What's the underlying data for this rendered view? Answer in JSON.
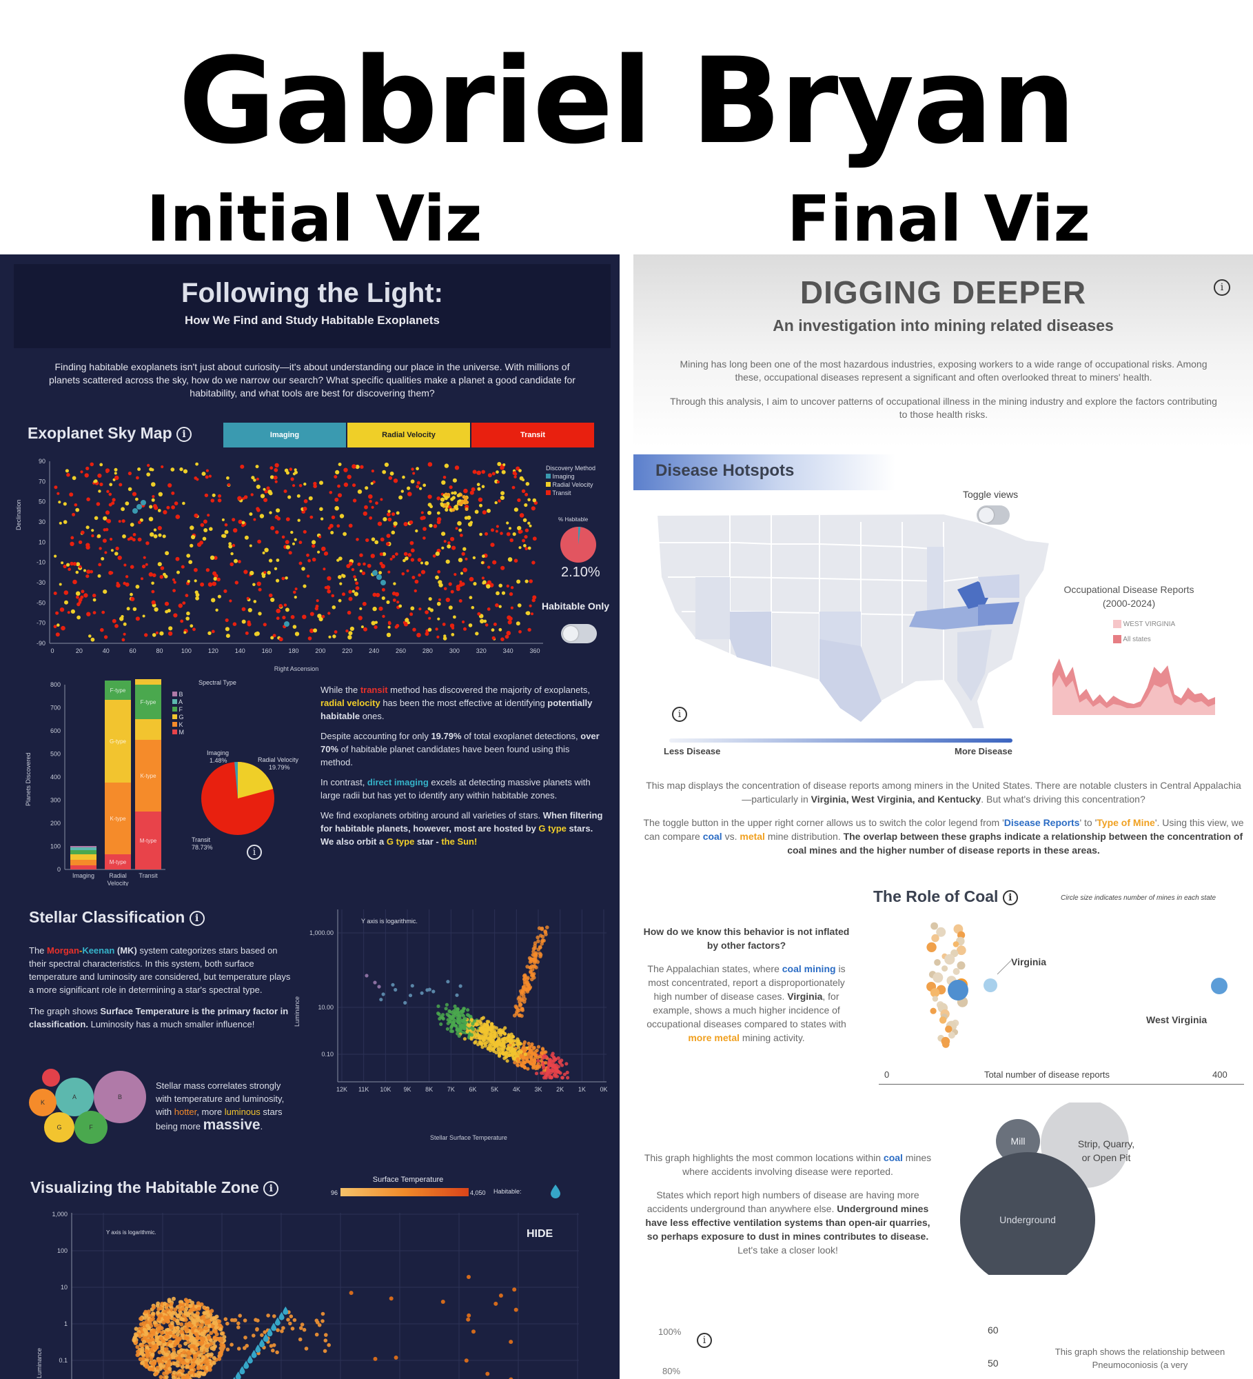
{
  "header": {
    "name": "Gabriel Bryan",
    "initial_label": "Initial Viz",
    "final_label": "Final Viz"
  },
  "left": {
    "title": "Following the Light:",
    "subtitle": "How We Find and Study Habitable Exoplanets",
    "intro": "Finding habitable exoplanets isn't just about curiosity—it's about understanding our place in the universe. With millions of planets scattered across the sky, how do we narrow our search? What specific qualities make a planet a good candidate for habitability, and what tools are best for discovering them?",
    "sky_map": {
      "title": "Exoplanet Sky Map",
      "buttons": [
        "Imaging",
        "Radial Velocity",
        "Transit"
      ],
      "ylabel": "Declination",
      "xlabel": "Right Ascension",
      "y_ticks": [
        "90",
        "70",
        "50",
        "30",
        "10",
        "-10",
        "-30",
        "-50",
        "-70",
        "-90"
      ],
      "x_ticks": [
        "0",
        "20",
        "40",
        "60",
        "80",
        "100",
        "120",
        "140",
        "160",
        "180",
        "200",
        "220",
        "240",
        "260",
        "280",
        "300",
        "320",
        "340",
        "360"
      ],
      "legend_title": "Discovery Method",
      "legend": [
        "Imaging",
        "Radial Velocity",
        "Transit"
      ],
      "pct_label": "% Habitable",
      "pct_value": "2.10%",
      "habitable_only": "Habitable Only"
    },
    "discovery": {
      "ylabel": "Planets Discovered",
      "y_ticks": [
        "800",
        "700",
        "600",
        "500",
        "400",
        "300",
        "200",
        "100",
        "0"
      ],
      "categories": [
        "Imaging",
        "Radial\nVelocity",
        "Transit"
      ],
      "spectral_title": "Spectral Type",
      "spectral_types": [
        "B",
        "A",
        "F",
        "G",
        "K",
        "M"
      ],
      "seg_labels": {
        "f": "F-type",
        "g": "G-type",
        "k": "K-type",
        "m": "M-type"
      },
      "pie_labels": {
        "imaging": "Imaging",
        "imaging_pct": "1.48%",
        "rv": "Radial Velocity",
        "rv_pct": "19.79%",
        "transit": "Transit",
        "transit_pct": "78.73%"
      }
    },
    "notes": {
      "p1a": "While the ",
      "p1b": "transit",
      "p1c": " method has discovered the majority of exoplanets, ",
      "p1d": "radial velocity",
      "p1e": " has been the most effective at identifying ",
      "p1f": "potentially habitable",
      "p1g": " ones.",
      "p2a": "Despite accounting for only ",
      "p2b": "19.79%",
      "p2c": " of total exoplanet detections, ",
      "p2d": "over 70%",
      "p2e": " of habitable planet candidates have been found using this method.",
      "p3a": "In contrast, ",
      "p3b": "direct imaging",
      "p3c": " excels at detecting massive planets with large radii but has yet to identify any within habitable zones.",
      "p4a": "We find exoplanets orbiting around all varieties of stars. ",
      "p4b": "When filtering for habitable planets, however, most are hosted by ",
      "p4c": "G type",
      "p4d": " stars. We also orbit a ",
      "p4e": "G type",
      "p4f": " star - ",
      "p4g": "the Sun!"
    },
    "stellar": {
      "title": "Stellar Classification",
      "p1a": "The ",
      "p1b": "Morgan",
      "p1c": "-",
      "p1d": "Keenan",
      "p1e": " (MK)",
      "p1f": " system categorizes stars based on their spectral characteristics. In this system, both surface temperature and luminosity are considered, but temperature plays a more significant role in determining a star's spectral type.",
      "p2a": "The graph shows ",
      "p2b": "Surface Temperature is the primary factor in classification.",
      "p2c": " Luminosity has a much smaller influence!",
      "p3a": "Stellar mass correlates strongly with temperature and luminosity, with ",
      "p3b": "hotter",
      "p3c": ", more ",
      "p3d": "luminous",
      "p3e": " stars being more ",
      "p3f": "massive",
      "p3g": ".",
      "bubbles": [
        "B",
        "A",
        "K",
        "G",
        "F"
      ],
      "chart_note": "Y axis is logarithmic.",
      "ylabel": "Luminance",
      "y_ticks": [
        "1,000.00",
        "10.00",
        "0.10"
      ],
      "x_ticks": [
        "12K",
        "11K",
        "10K",
        "9K",
        "8K",
        "7K",
        "6K",
        "5K",
        "4K",
        "3K",
        "2K",
        "1K",
        "0K"
      ],
      "xlabel": "Stellar Surface Temperature"
    },
    "habitable_zone": {
      "title": "Visualizing the Habitable Zone",
      "legend_title": "Surface Temperature",
      "legend_min": "96",
      "legend_max": "4,050",
      "habitable": "Habitable:",
      "note": "Y axis is logarithmic.",
      "hide": "HIDE",
      "ylabel": "Luminance",
      "y_ticks": [
        "1,000",
        "100",
        "10",
        "1",
        "0.1"
      ]
    }
  },
  "right": {
    "title": "DIGGING DEEPER",
    "subtitle": "An investigation into mining related diseases",
    "intro1": "Mining has long been one of the most hazardous industries, exposing workers to a wide range of occupational risks. Among these, occupational diseases represent a significant and often overlooked threat to miners' health.",
    "intro2": "Through this analysis, I aim to uncover patterns of occupational illness in the mining industry and explore the factors contributing to those health risks.",
    "hotspots": {
      "title": "Disease Hotspots",
      "toggle": "Toggle views",
      "reports_title": "Occupational Disease Reports\n(2000-2024)",
      "legend": [
        "WEST VIRGINIA",
        "All states"
      ],
      "less": "Less Disease",
      "more": "More Disease",
      "p1a": "This map displays the concentration of disease reports among miners in the United States. There are notable clusters in Central Appalachia—particularly in ",
      "p1b": "Virginia, West Virginia, and Kentucky",
      "p1c": ". But what's driving this concentration?",
      "p2a": "The toggle button in the upper right corner allows us to switch the color legend from '",
      "p2b": "Disease Reports",
      "p2c": "' to '",
      "p2d": "Type of Mine",
      "p2e": "'. Using this view, we can compare ",
      "p2f": "coal",
      "p2g": " vs. ",
      "p2h": "metal",
      "p2i": " mine distribution. ",
      "p2j": "The overlap between these graphs indicate a relationship between the concentration of coal mines and the higher number of disease reports in these areas."
    },
    "coal": {
      "title": "The Role of Coal",
      "note": "Circle size indicates number of mines in each state",
      "q": "How do we know this behavior is not inflated by other factors?",
      "p1a": "The Appalachian states, where ",
      "p1b": "coal mining",
      "p1c": " is most concentrated, report a disproportionately high number of disease cases. ",
      "p1d": "Virginia",
      "p1e": ", for example, shows a much higher incidence of occupational diseases compared to states with ",
      "p1f": "more metal",
      "p1g": " mining activity.",
      "virginia": "Virginia",
      "west_virginia": "West Virginia",
      "axis_min": "0",
      "axis_label": "Total number of disease reports",
      "axis_max": "400"
    },
    "locations": {
      "p1a": "This graph highlights the most common locations within ",
      "p1b": "coal",
      "p1c": " mines where accidents involving disease were reported.",
      "p2a": "States which report high numbers of disease are having more accidents underground than anywhere else. ",
      "p2b": "Underground mines have less effective ventilation systems than open-air quarries, so perhaps exposure to dust in mines contributes to disease.",
      "p2c": " Let's take a closer look!",
      "bubbles": [
        "Mill",
        "Strip, Quarry,\nor Open Pit",
        "Underground"
      ]
    },
    "bottom": {
      "pct100": "100%",
      "pct80": "80%",
      "v60": "60",
      "v50": "50",
      "text": "This graph shows the relationship between Pneumoconiosis (a very"
    }
  },
  "colors": {
    "imaging": "#3a9ab0",
    "rv": "#efcf28",
    "transit": "#e8200f",
    "navy": "#1b2040",
    "slate": "#4a5160"
  }
}
